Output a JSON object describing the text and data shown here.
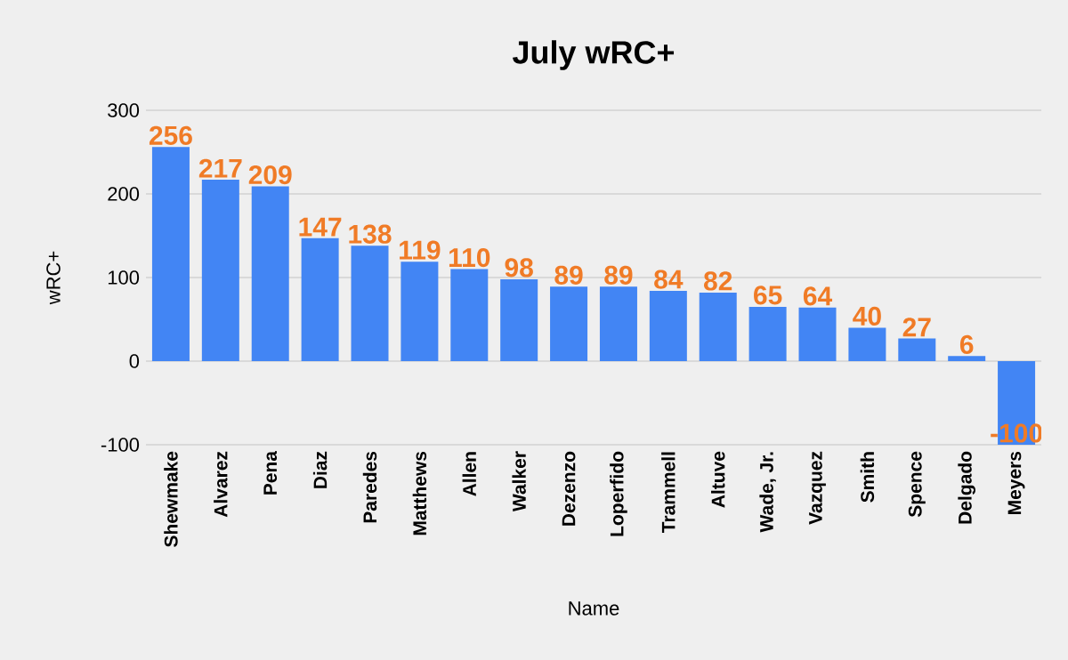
{
  "chart_data": {
    "type": "bar",
    "title": "July wRC+",
    "xlabel": "Name",
    "ylabel": "wRC+",
    "categories": [
      "Shewmake",
      "Alvarez",
      "Pena",
      "Diaz",
      "Paredes",
      "Matthews",
      "Allen",
      "Walker",
      "Dezenzo",
      "Loperfido",
      "Trammell",
      "Altuve",
      "Wade, Jr.",
      "Vazquez",
      "Smith",
      "Spence",
      "Delgado",
      "Meyers"
    ],
    "values": [
      256,
      217,
      209,
      147,
      138,
      119,
      110,
      98,
      89,
      89,
      84,
      82,
      65,
      64,
      40,
      27,
      6,
      -100
    ],
    "color": "#4285f4",
    "ylim": [
      -100,
      300
    ],
    "yticks": [
      -100,
      0,
      100,
      200,
      300
    ],
    "grid": "y",
    "value_labels": [
      "256",
      "217",
      "209",
      "147",
      "138",
      "119",
      "110",
      "98",
      "89",
      "89",
      "84",
      "82",
      "65",
      "64",
      "40",
      "27",
      "6",
      "-100"
    ]
  }
}
